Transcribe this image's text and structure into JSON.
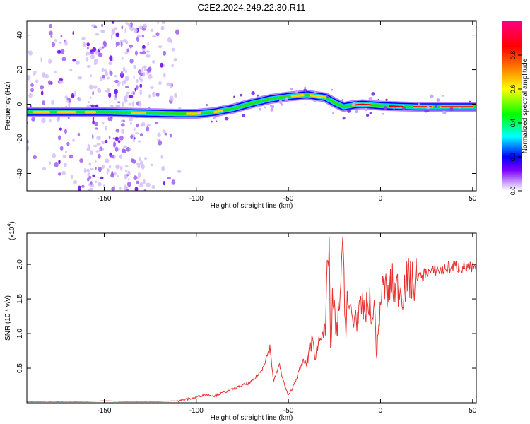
{
  "title": "C2E2.2024.249.22.30.R11",
  "chart_data": [
    {
      "type": "heatmap",
      "xlabel": "Height of straight line (km)",
      "ylabel": "Frequency (Hz)",
      "xlim": [
        -192,
        52
      ],
      "ylim": [
        -50,
        48
      ],
      "xticks": [
        -150,
        -100,
        -50,
        0,
        50
      ],
      "yticks": [
        40,
        20,
        0,
        -20,
        -40
      ],
      "x_tick_labels": [
        "-150",
        "-100",
        "-50",
        "0",
        "50"
      ],
      "y_tick_labels": [
        "40",
        "20",
        "0",
        "-20",
        "-40"
      ],
      "ridge": {
        "x": [
          -192,
          -150,
          -110,
          -100,
          -90,
          -80,
          -70,
          -60,
          -50,
          -40,
          -30,
          -25,
          -20,
          -15,
          -10,
          0,
          10,
          20,
          30,
          40,
          52
        ],
        "y": [
          -4.5,
          -4.5,
          -5.5,
          -5.5,
          -4.5,
          -2.5,
          0.5,
          3.0,
          4.5,
          5.5,
          4.0,
          1.0,
          -1.5,
          -0.5,
          0.0,
          -0.8,
          -1.2,
          -1.5,
          -1.5,
          -1.5,
          -1.5
        ]
      },
      "scatter_noise_x_range": [
        -192,
        -108
      ],
      "colorbar": {
        "label": "Normalized spectral amplitude",
        "ticks": [
          0.0,
          0.2,
          0.4,
          0.6,
          0.8
        ],
        "tick_labels": [
          "0.0",
          "0.2",
          "0.4",
          "0.6",
          "0.8"
        ],
        "range": [
          0,
          1
        ],
        "colors": [
          "#ffffff",
          "#8000ff",
          "#0000ff",
          "#00ffff",
          "#00ff00",
          "#ffff00",
          "#ff8000",
          "#ff0000",
          "#ff0080"
        ]
      }
    },
    {
      "type": "line",
      "xlabel": "Height of straight line (km)",
      "ylabel": "SNR (10 * v/v)",
      "y_multiplier_label": "(x10",
      "y_multiplier_exp": "4",
      "y_multiplier_close": ")",
      "xlim": [
        -192,
        52
      ],
      "ylim": [
        0,
        2.45
      ],
      "xticks": [
        -150,
        -100,
        -50,
        0,
        50
      ],
      "yticks": [
        0.5,
        1.0,
        1.5,
        2.0
      ],
      "x_tick_labels": [
        "-150",
        "-100",
        "-50",
        "0",
        "50"
      ],
      "y_tick_labels": [
        "0.5",
        "1.0",
        "1.5",
        "2.0"
      ],
      "color": "#e83030",
      "series": [
        {
          "x": [
            -192,
            -180,
            -170,
            -160,
            -150,
            -140,
            -130,
            -120,
            -110,
            -105,
            -100,
            -95,
            -90,
            -85,
            -80,
            -75,
            -70,
            -65,
            -62,
            -60,
            -58,
            -55,
            -52,
            -50,
            -48,
            -45,
            -42,
            -40,
            -38,
            -35,
            -32,
            -30,
            -28,
            -27,
            -26,
            -25,
            -24,
            -22,
            -20,
            -19,
            -18,
            -17,
            -16,
            -15,
            -14,
            -12,
            -10,
            -8,
            -6,
            -5,
            -4,
            -3,
            -2,
            0,
            2,
            4,
            6,
            8,
            10,
            12,
            14,
            16,
            18,
            20,
            22,
            25,
            28,
            30,
            33,
            36,
            40,
            44,
            48,
            52
          ],
          "y": [
            0.02,
            0.02,
            0.02,
            0.02,
            0.03,
            0.02,
            0.02,
            0.02,
            0.03,
            0.05,
            0.08,
            0.12,
            0.1,
            0.15,
            0.2,
            0.25,
            0.3,
            0.45,
            0.65,
            0.8,
            0.3,
            0.55,
            0.25,
            0.1,
            0.2,
            0.4,
            0.6,
            0.55,
            0.9,
            0.7,
            1.1,
            0.95,
            2.45,
            0.6,
            1.5,
            1.3,
            0.9,
            1.6,
            2.2,
            1.0,
            1.55,
            1.2,
            1.4,
            1.1,
            1.3,
            1.2,
            1.4,
            1.3,
            1.55,
            1.0,
            1.45,
            1.25,
            0.65,
            1.5,
            1.7,
            1.55,
            1.75,
            1.6,
            1.7,
            1.6,
            1.75,
            1.8,
            1.7,
            1.85,
            1.8,
            1.9,
            1.88,
            1.93,
            1.9,
            1.95,
            1.97,
            1.96,
            1.95,
            1.93
          ]
        }
      ]
    }
  ]
}
